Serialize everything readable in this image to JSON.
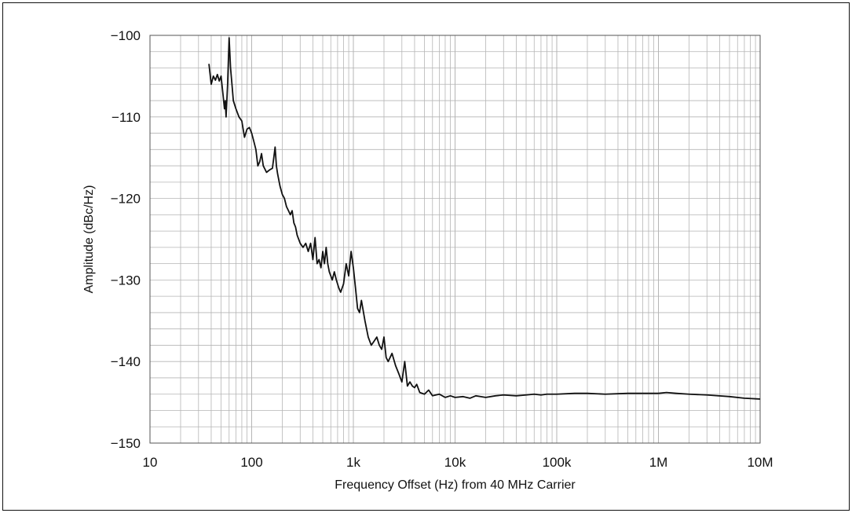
{
  "chart_data": {
    "type": "line",
    "title": "",
    "xlabel": "Frequency Offset (Hz) from 40 MHz Carrier",
    "ylabel": "Amplitude (dBc/Hz)",
    "x_scale": "log",
    "xlim": [
      10,
      10000000
    ],
    "ylim": [
      -150,
      -100
    ],
    "grid": true,
    "legend": "none",
    "colors": {
      "line": "#111111",
      "grid": "#b5b5b5",
      "frame": "#111111"
    },
    "x_ticks": [
      {
        "value": 10,
        "label": "10"
      },
      {
        "value": 100,
        "label": "100"
      },
      {
        "value": 1000,
        "label": "1k"
      },
      {
        "value": 10000,
        "label": "10k"
      },
      {
        "value": 100000,
        "label": "100k"
      },
      {
        "value": 1000000,
        "label": "1M"
      },
      {
        "value": 10000000,
        "label": "10M"
      }
    ],
    "y_ticks": [
      {
        "value": -100,
        "label": "−100"
      },
      {
        "value": -110,
        "label": "−110"
      },
      {
        "value": -120,
        "label": "−120"
      },
      {
        "value": -130,
        "label": "−130"
      },
      {
        "value": -140,
        "label": "−140"
      },
      {
        "value": -150,
        "label": "−150"
      }
    ],
    "series": [
      {
        "x": [
          38,
          40,
          42,
          44,
          46,
          48,
          50,
          52,
          54,
          55,
          56,
          58,
          60,
          62,
          64,
          66,
          70,
          75,
          80,
          85,
          90,
          95,
          100,
          105,
          110,
          115,
          120,
          125,
          130,
          140,
          150,
          160,
          165,
          170,
          175,
          180,
          190,
          200,
          210,
          220,
          230,
          240,
          250,
          260,
          270,
          280,
          300,
          320,
          340,
          360,
          380,
          400,
          420,
          440,
          460,
          480,
          500,
          520,
          540,
          560,
          580,
          600,
          620,
          650,
          680,
          700,
          720,
          750,
          800,
          850,
          900,
          950,
          1000,
          1050,
          1100,
          1150,
          1200,
          1300,
          1400,
          1500,
          1600,
          1700,
          1800,
          1900,
          2000,
          2100,
          2200,
          2400,
          2600,
          2800,
          3000,
          3200,
          3400,
          3600,
          3800,
          4000,
          4200,
          4500,
          5000,
          5500,
          6000,
          7000,
          8000,
          9000,
          10000,
          12000,
          14000,
          16000,
          18000,
          20000,
          25000,
          30000,
          40000,
          50000,
          60000,
          70000,
          80000,
          100000,
          150000,
          200000,
          300000,
          500000,
          700000,
          1000000,
          1200000,
          1500000,
          2000000,
          3000000,
          5000000,
          7000000,
          10000000
        ],
        "y": [
          -103.5,
          -106,
          -105,
          -105.5,
          -104.8,
          -105.6,
          -105,
          -107,
          -109,
          -108,
          -110,
          -106,
          -100.3,
          -104,
          -106,
          -108,
          -109,
          -110,
          -110.5,
          -112.5,
          -111.5,
          -111.3,
          -112,
          -113,
          -114,
          -116,
          -115.5,
          -114.5,
          -116,
          -116.8,
          -116.5,
          -116.3,
          -115,
          -113.7,
          -116,
          -117,
          -118.5,
          -119.5,
          -120,
          -121,
          -121.5,
          -122,
          -121.5,
          -123,
          -123.5,
          -124.5,
          -125.5,
          -126,
          -125.5,
          -126.5,
          -125.5,
          -127.5,
          -124.8,
          -128,
          -127.5,
          -128.5,
          -126.5,
          -128,
          -126,
          -128,
          -129,
          -129.5,
          -130,
          -129,
          -130,
          -130.5,
          -131,
          -131.5,
          -130.5,
          -128,
          -129.5,
          -126.5,
          -128.5,
          -131,
          -133.5,
          -134,
          -132.5,
          -135,
          -137,
          -138,
          -137.5,
          -137,
          -138,
          -138.5,
          -137,
          -139.5,
          -140,
          -139,
          -140.5,
          -141.5,
          -142.5,
          -140,
          -143,
          -142.5,
          -143,
          -143.2,
          -142.8,
          -143.8,
          -144,
          -143.5,
          -144.2,
          -144,
          -144.4,
          -144.2,
          -144.4,
          -144.3,
          -144.5,
          -144.2,
          -144.3,
          -144.4,
          -144.2,
          -144.1,
          -144.2,
          -144.1,
          -144,
          -144.1,
          -144,
          -144,
          -143.9,
          -143.9,
          -144,
          -143.9,
          -143.9,
          -143.9,
          -143.8,
          -143.9,
          -144,
          -144.1,
          -144.3,
          -144.5,
          -144.6
        ]
      }
    ]
  }
}
